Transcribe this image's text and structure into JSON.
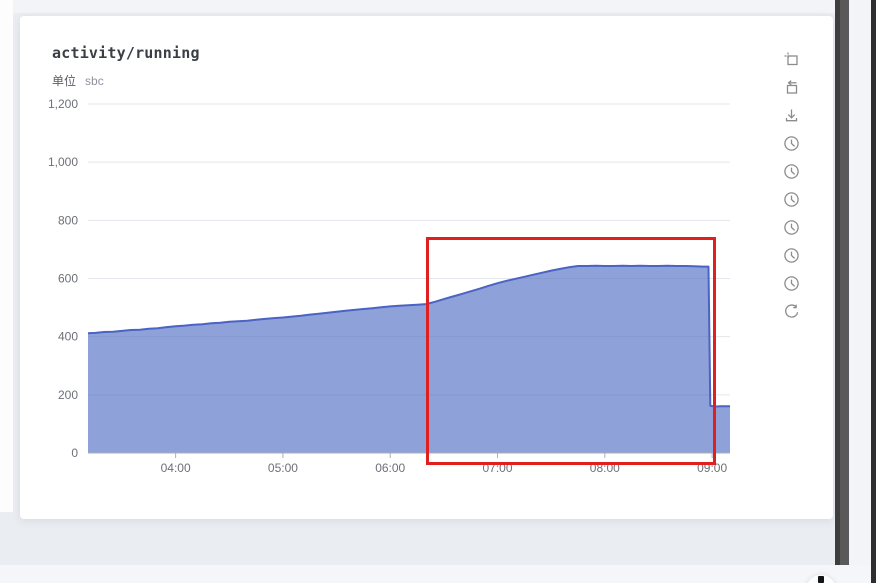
{
  "card": {
    "title": "activity/running",
    "unit_label": "单位",
    "unit_value": "sbc"
  },
  "toolbar": {
    "icons": [
      {
        "name": "area-zoom-icon",
        "meaning": "select region to zoom"
      },
      {
        "name": "zoom-reset-icon",
        "meaning": "restore zoom"
      },
      {
        "name": "save-image-icon",
        "meaning": "download chart as image"
      },
      {
        "name": "time-range-icon-1",
        "meaning": "time range preset"
      },
      {
        "name": "time-range-icon-2",
        "meaning": "time range preset"
      },
      {
        "name": "time-range-icon-3",
        "meaning": "time range preset"
      },
      {
        "name": "time-range-icon-4",
        "meaning": "time range preset"
      },
      {
        "name": "time-range-icon-5",
        "meaning": "time range preset"
      },
      {
        "name": "time-range-icon-6",
        "meaning": "time range preset"
      },
      {
        "name": "refresh-icon",
        "meaning": "reload data"
      }
    ]
  },
  "chart_data": {
    "type": "area",
    "title": "activity/running",
    "ylabel_unit": "sbc",
    "grid": true,
    "legend": false,
    "axis": {
      "x_start": "03:11",
      "x_end": "09:10",
      "y_min": 0,
      "y_max": 1200
    },
    "y_ticks": [
      0,
      200,
      400,
      600,
      800,
      1000,
      1200
    ],
    "y_tick_labels": [
      "0",
      "200",
      "400",
      "600",
      "800",
      "1,000",
      "1,200"
    ],
    "x_ticks": [
      "04:00",
      "05:00",
      "06:00",
      "07:00",
      "08:00",
      "09:00"
    ],
    "x": [
      "03:11",
      "03:15",
      "03:20",
      "03:25",
      "03:30",
      "03:35",
      "03:40",
      "03:45",
      "03:50",
      "03:55",
      "04:00",
      "04:05",
      "04:10",
      "04:15",
      "04:20",
      "04:25",
      "04:30",
      "04:35",
      "04:40",
      "04:45",
      "04:50",
      "04:55",
      "05:00",
      "05:05",
      "05:10",
      "05:15",
      "05:20",
      "05:25",
      "05:30",
      "05:35",
      "05:40",
      "05:45",
      "05:50",
      "05:55",
      "06:00",
      "06:05",
      "06:10",
      "06:15",
      "06:20",
      "06:25",
      "06:30",
      "06:35",
      "06:40",
      "06:45",
      "06:50",
      "06:55",
      "07:00",
      "07:05",
      "07:10",
      "07:15",
      "07:20",
      "07:25",
      "07:30",
      "07:35",
      "07:40",
      "07:45",
      "07:50",
      "07:55",
      "08:00",
      "08:05",
      "08:10",
      "08:15",
      "08:20",
      "08:25",
      "08:30",
      "08:35",
      "08:40",
      "08:45",
      "08:50",
      "08:55",
      "08:58",
      "08:59",
      "09:02",
      "09:05",
      "09:08",
      "09:10"
    ],
    "values": [
      412,
      413,
      416,
      417,
      420,
      423,
      424,
      427,
      429,
      433,
      436,
      438,
      441,
      443,
      446,
      448,
      451,
      453,
      455,
      458,
      461,
      464,
      466,
      469,
      472,
      476,
      479,
      482,
      486,
      489,
      492,
      495,
      498,
      501,
      504,
      506,
      508,
      510,
      512,
      520,
      529,
      538,
      547,
      556,
      565,
      575,
      584,
      592,
      599,
      606,
      613,
      620,
      627,
      633,
      639,
      643,
      643,
      644,
      643,
      643,
      644,
      643,
      644,
      643,
      643,
      644,
      643,
      643,
      642,
      641,
      641,
      162,
      160,
      161,
      161,
      161
    ],
    "colors": {
      "line": "#4a63c4",
      "fill": "rgba(84,112,198,0.66)",
      "grid": "#e3e6ec",
      "axis": "#aab0b8",
      "label": "#6e7079",
      "annotation": "#e01f1f"
    },
    "annotations": [
      {
        "type": "box",
        "x_from": "06:20",
        "x_to": "09:02",
        "y_from": -42,
        "y_to": 742,
        "stroke": "#e01f1f"
      }
    ]
  }
}
